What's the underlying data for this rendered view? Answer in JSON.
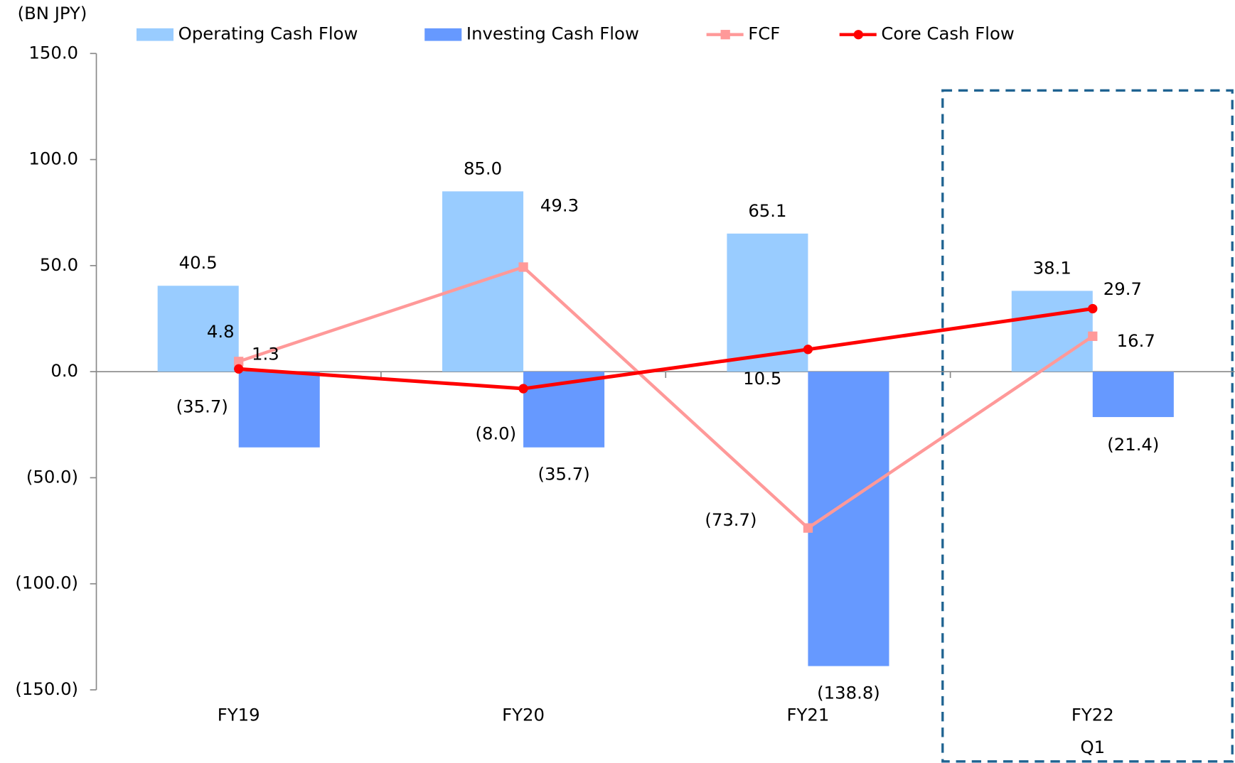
{
  "chart_data": {
    "type": "bar_line",
    "y_axis_label": "(BN JPY)",
    "categories": [
      "FY19",
      "FY20",
      "FY21",
      [
        "FY22",
        "Q1"
      ]
    ],
    "ylim": [
      -150,
      150
    ],
    "yticks": [
      {
        "value": -150,
        "label": "(150.0)"
      },
      {
        "value": -100,
        "label": "(100.0)"
      },
      {
        "value": -50,
        "label": "(50.0)"
      },
      {
        "value": 0,
        "label": "0.0"
      },
      {
        "value": 50,
        "label": "50.0"
      },
      {
        "value": 100,
        "label": "100.0"
      },
      {
        "value": 150,
        "label": "150.0"
      }
    ],
    "series": [
      {
        "name": "Operating Cash Flow",
        "kind": "bar",
        "color": "#99ccff",
        "values": [
          40.5,
          85.0,
          65.1,
          38.1
        ],
        "value_labels": [
          "40.5",
          "85.0",
          "65.1",
          "38.1"
        ]
      },
      {
        "name": "Investing Cash Flow",
        "kind": "bar",
        "color": "#6699ff",
        "values": [
          -35.7,
          -35.7,
          -138.8,
          -21.4
        ],
        "value_labels": [
          "(35.7)",
          "(35.7)",
          "(138.8)",
          "(21.4)"
        ]
      },
      {
        "name": "FCF",
        "kind": "line",
        "marker": "square",
        "color": "#ff9999",
        "values": [
          4.8,
          49.3,
          -73.7,
          16.7
        ],
        "value_labels": [
          "4.8",
          "49.3",
          "(73.7)",
          "16.7"
        ]
      },
      {
        "name": "Core Cash Flow",
        "kind": "line",
        "marker": "circle",
        "color": "#ff0000",
        "values": [
          1.3,
          -8.0,
          10.5,
          29.7
        ],
        "value_labels": [
          "1.3",
          "(8.0)",
          "10.5",
          "29.7"
        ]
      }
    ]
  }
}
